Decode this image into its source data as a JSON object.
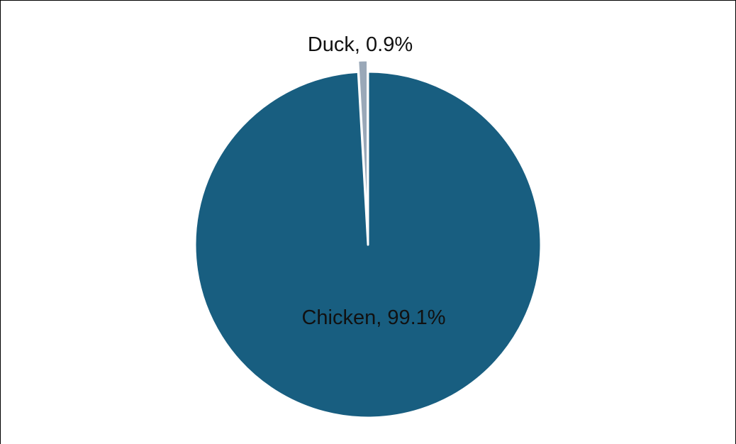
{
  "chart_data": {
    "type": "pie",
    "title": "",
    "slices": [
      {
        "label": "Chicken",
        "value": 99.1,
        "display": "Chicken, 99.1%",
        "color": "#185e80"
      },
      {
        "label": "Duck",
        "value": 0.9,
        "display": "Duck, 0.9%",
        "color": "#9aa8b8"
      }
    ],
    "legend": "none"
  }
}
